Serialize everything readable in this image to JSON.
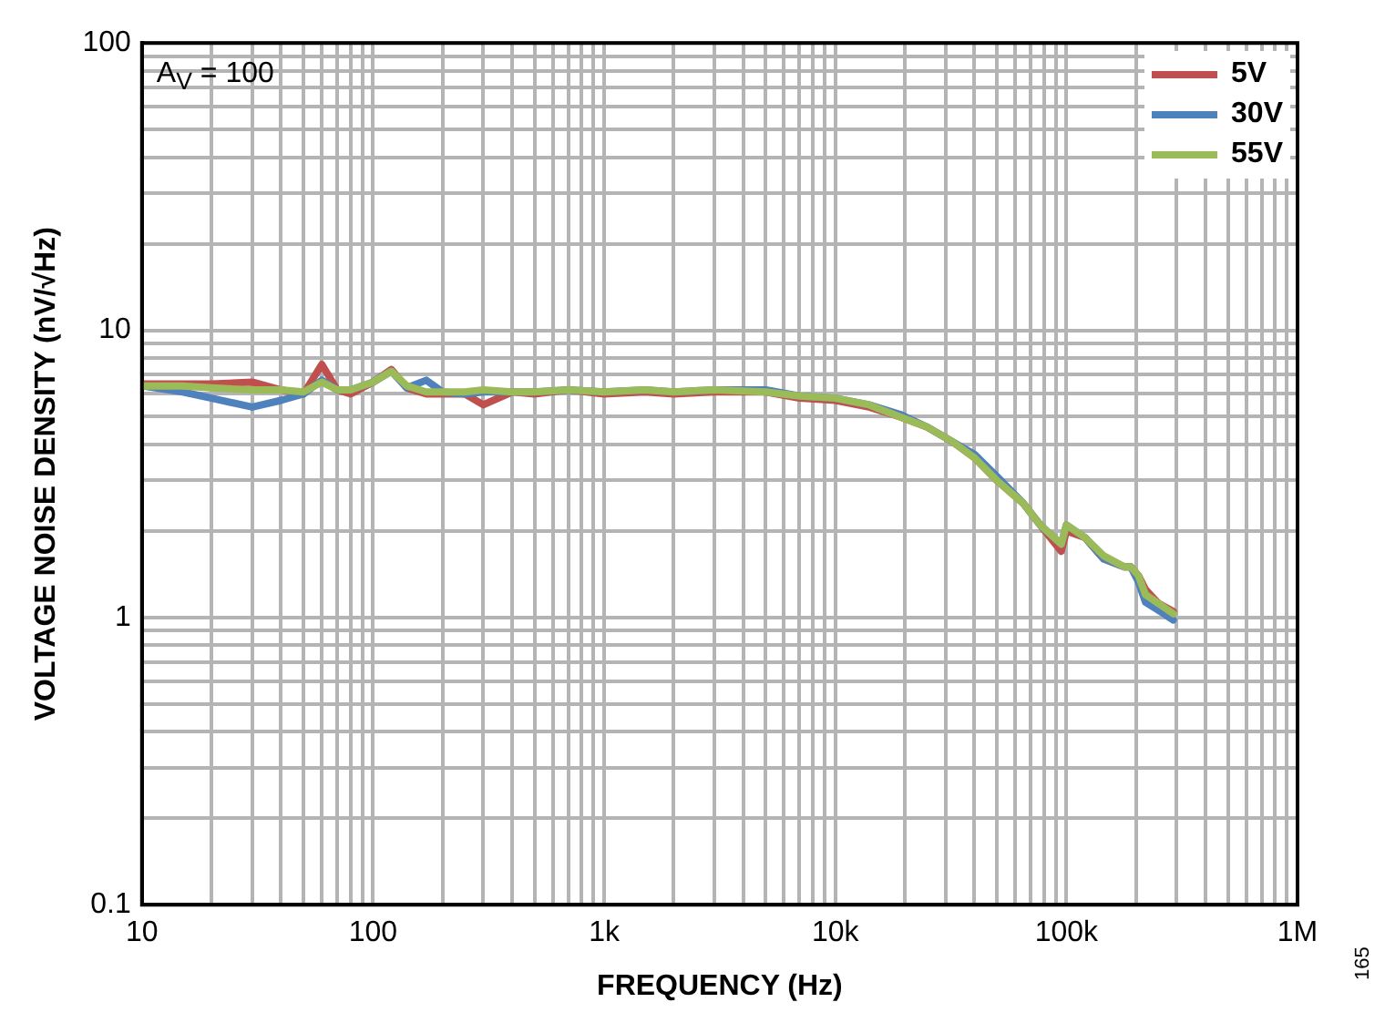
{
  "chart_data": {
    "type": "line",
    "xlabel": "FREQUENCY (Hz)",
    "ylabel": "VOLTAGE NOISE DENSITY (nV/√Hz)",
    "annotations": [
      "A$_{V}$ = 100",
      "165"
    ],
    "log": "xy",
    "grid": true,
    "legend": "top right",
    "marker": "none",
    "line_style": "solid",
    "xlim": [
      10,
      1000000
    ],
    "ylim": [
      0.1,
      100
    ],
    "xticks": [
      {
        "value": 10,
        "label": "10"
      },
      {
        "value": 20,
        "label": null
      },
      {
        "value": 30,
        "label": null
      },
      {
        "value": 40,
        "label": null
      },
      {
        "value": 50,
        "label": null
      },
      {
        "value": 60,
        "label": null
      },
      {
        "value": 70,
        "label": null
      },
      {
        "value": 80,
        "label": null
      },
      {
        "value": 90,
        "label": null
      },
      {
        "value": 100,
        "label": "100"
      },
      {
        "value": 200,
        "label": null
      },
      {
        "value": 300,
        "label": null
      },
      {
        "value": 400,
        "label": null
      },
      {
        "value": 500,
        "label": null
      },
      {
        "value": 600,
        "label": null
      },
      {
        "value": 700,
        "label": null
      },
      {
        "value": 800,
        "label": null
      },
      {
        "value": 900,
        "label": null
      },
      {
        "value": 1000,
        "label": "1k"
      },
      {
        "value": 2000,
        "label": null
      },
      {
        "value": 3000,
        "label": null
      },
      {
        "value": 4000,
        "label": null
      },
      {
        "value": 5000,
        "label": null
      },
      {
        "value": 6000,
        "label": null
      },
      {
        "value": 7000,
        "label": null
      },
      {
        "value": 8000,
        "label": null
      },
      {
        "value": 9000,
        "label": null
      },
      {
        "value": 10000,
        "label": "10k"
      },
      {
        "value": 20000,
        "label": null
      },
      {
        "value": 30000,
        "label": null
      },
      {
        "value": 40000,
        "label": null
      },
      {
        "value": 50000,
        "label": null
      },
      {
        "value": 60000,
        "label": null
      },
      {
        "value": 70000,
        "label": null
      },
      {
        "value": 80000,
        "label": null
      },
      {
        "value": 90000,
        "label": null
      },
      {
        "value": 100000,
        "label": "100k"
      },
      {
        "value": 200000,
        "label": null
      },
      {
        "value": 300000,
        "label": null
      },
      {
        "value": 400000,
        "label": null
      },
      {
        "value": 500000,
        "label": null
      },
      {
        "value": 600000,
        "label": null
      },
      {
        "value": 700000,
        "label": null
      },
      {
        "value": 800000,
        "label": null
      },
      {
        "value": 900000,
        "label": null
      },
      {
        "value": 1000000,
        "label": "1M"
      }
    ],
    "yticks": [
      0.1,
      {
        "value": 0.2,
        "label": null
      },
      {
        "value": 0.3,
        "label": null
      },
      {
        "value": 0.4,
        "label": null
      },
      {
        "value": 0.5,
        "label": null
      },
      {
        "value": 0.6,
        "label": null
      },
      {
        "value": 0.7,
        "label": null
      },
      {
        "value": 0.8,
        "label": null
      },
      {
        "value": 0.9,
        "label": null
      },
      1,
      {
        "value": 2,
        "label": null
      },
      {
        "value": 3,
        "label": null
      },
      {
        "value": 4,
        "label": null
      },
      {
        "value": 5,
        "label": null
      },
      {
        "value": 6,
        "label": null
      },
      {
        "value": 7,
        "label": null
      },
      {
        "value": 8,
        "label": null
      },
      {
        "value": 9,
        "label": null
      },
      10,
      {
        "value": 20,
        "label": null
      },
      {
        "value": 30,
        "label": null
      },
      {
        "value": 40,
        "label": null
      },
      {
        "value": 50,
        "label": null
      },
      {
        "value": 60,
        "label": null
      },
      {
        "value": 70,
        "label": null
      },
      {
        "value": 80,
        "label": null
      },
      {
        "value": 90,
        "label": null
      },
      100
    ],
    "x": [
      10,
      15,
      20,
      30,
      40,
      50,
      60,
      70,
      80,
      100,
      120,
      140,
      170,
      200,
      250,
      300,
      400,
      500,
      700,
      1000,
      1500,
      2000,
      3000,
      5000,
      7000,
      10000,
      14000,
      19000,
      25000,
      32000,
      40000,
      50000,
      65000,
      77000,
      95000,
      100000,
      120000,
      145000,
      178000,
      190000,
      205000,
      220000,
      250000,
      290000
    ],
    "series": [
      {
        "name": "5V",
        "color": "#c0504d",
        "values": [
          6.5,
          6.5,
          6.5,
          6.6,
          6.2,
          6.0,
          7.6,
          6.2,
          6.0,
          6.6,
          7.3,
          6.3,
          6.0,
          6.0,
          6.0,
          5.5,
          6.1,
          6.0,
          6.2,
          6.0,
          6.1,
          6.0,
          6.1,
          6.1,
          5.8,
          5.7,
          5.4,
          5.0,
          4.6,
          4.1,
          3.6,
          3.0,
          2.5,
          2.1,
          1.7,
          2.0,
          1.9,
          1.6,
          1.5,
          1.5,
          1.4,
          1.25,
          1.12,
          1.05
        ]
      },
      {
        "name": "30V",
        "color": "#4f81bd",
        "values": [
          6.4,
          6.1,
          5.8,
          5.4,
          5.7,
          6.0,
          6.7,
          6.2,
          6.2,
          6.6,
          7.2,
          6.3,
          6.7,
          6.1,
          6.0,
          6.1,
          6.1,
          6.1,
          6.2,
          6.1,
          6.2,
          6.1,
          6.2,
          6.2,
          5.9,
          5.8,
          5.5,
          5.1,
          4.6,
          4.1,
          3.7,
          3.1,
          2.5,
          2.1,
          1.8,
          2.1,
          1.9,
          1.6,
          1.5,
          1.5,
          1.33,
          1.13,
          1.06,
          0.98
        ]
      },
      {
        "name": "55V",
        "color": "#9bbb59",
        "values": [
          6.4,
          6.4,
          6.3,
          6.2,
          6.2,
          6.1,
          6.6,
          6.2,
          6.2,
          6.6,
          7.2,
          6.4,
          6.1,
          6.1,
          6.1,
          6.2,
          6.1,
          6.1,
          6.2,
          6.1,
          6.2,
          6.1,
          6.2,
          6.1,
          5.9,
          5.8,
          5.5,
          5.0,
          4.6,
          4.1,
          3.6,
          3.0,
          2.5,
          2.1,
          1.8,
          2.1,
          1.9,
          1.64,
          1.5,
          1.5,
          1.4,
          1.2,
          1.12,
          1.03
        ]
      }
    ]
  }
}
